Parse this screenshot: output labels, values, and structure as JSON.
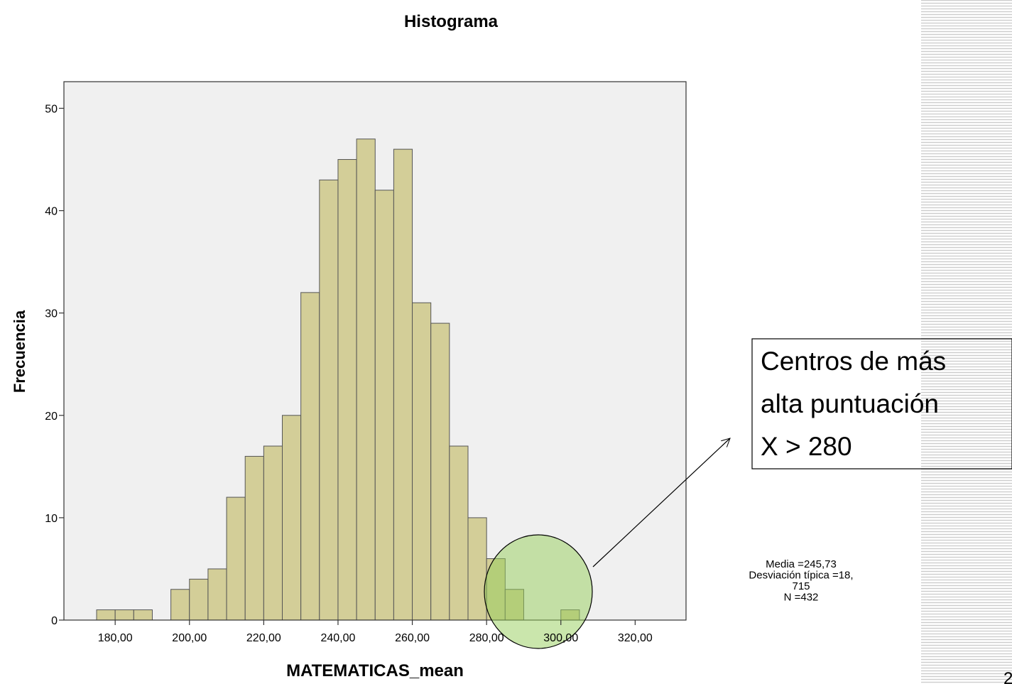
{
  "chart_data": {
    "type": "histogram",
    "title": "Histograma",
    "x_label": "MATEMATICAS_mean",
    "y_label": "Frecuencia",
    "bins": [
      175,
      180,
      185,
      190,
      195,
      200,
      205,
      210,
      215,
      220,
      225,
      230,
      235,
      240,
      245,
      250,
      255,
      260,
      265,
      270,
      275,
      280,
      285,
      290,
      295,
      300,
      305
    ],
    "values": [
      1,
      1,
      1,
      0,
      3,
      4,
      5,
      12,
      16,
      17,
      20,
      32,
      43,
      45,
      47,
      42,
      46,
      31,
      29,
      17,
      10,
      6,
      3,
      0,
      0,
      1
    ],
    "color": "#d3ce98",
    "xlim": [
      166.2,
      333.7
    ],
    "ylim": [
      0,
      52.6
    ],
    "xticks": [
      {
        "value": 180,
        "label": "180,00"
      },
      {
        "value": 200,
        "label": "200,00"
      },
      {
        "value": 220,
        "label": "220,00"
      },
      {
        "value": 240,
        "label": "240,00"
      },
      {
        "value": 260,
        "label": "260,00"
      },
      {
        "value": 280,
        "label": "280,00"
      },
      {
        "value": 300,
        "label": "300,00"
      },
      {
        "value": 320,
        "label": "320,00"
      }
    ],
    "yticks": [
      0,
      10,
      20,
      30,
      40,
      50
    ],
    "stats": [
      "Media =245,73",
      "Desviación típica =18,",
      "715",
      "N =432"
    ],
    "callout": [
      "Centros de más",
      "alta puntuación",
      "X > 280"
    ],
    "page_number": "2"
  }
}
